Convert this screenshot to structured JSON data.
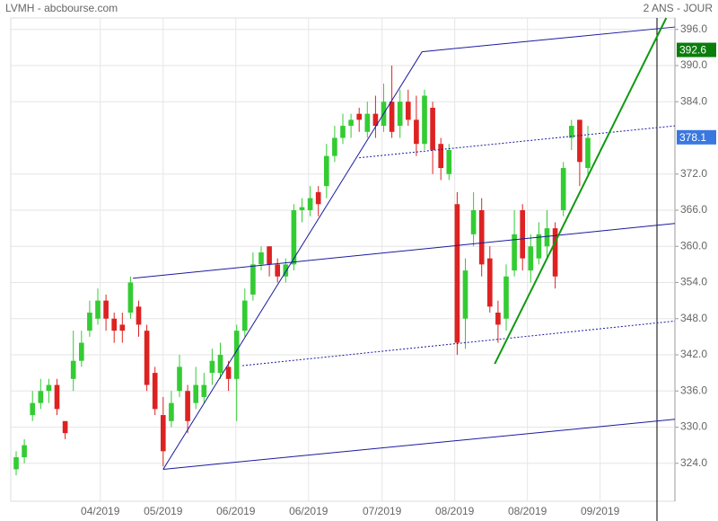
{
  "chart_data": {
    "type": "candlestick",
    "title": "LVMH - abcbourse.com",
    "subtitle": "2 ANS - JOUR",
    "x": [
      0,
      1,
      2,
      3,
      4,
      5,
      6,
      7,
      8,
      9,
      10,
      11,
      12,
      13,
      14,
      15,
      16,
      17,
      18,
      19,
      20,
      21,
      22,
      23,
      24,
      25,
      26,
      27,
      28,
      29,
      30,
      31,
      32,
      33,
      34,
      35,
      36,
      37,
      38,
      39,
      40,
      41,
      42,
      43,
      44,
      45,
      46,
      47,
      48,
      49,
      50,
      51,
      52,
      53,
      54,
      55,
      56,
      57,
      58,
      59,
      60,
      61,
      62,
      63,
      64,
      65,
      66,
      67,
      68,
      69,
      70
    ],
    "open": [
      323,
      325,
      332,
      334,
      336,
      337,
      331,
      338,
      341,
      346,
      348,
      351,
      348,
      347,
      349,
      350,
      346,
      339,
      332,
      331,
      336,
      336,
      334,
      335,
      339,
      339,
      340,
      338,
      346,
      352,
      357,
      360,
      357,
      355,
      357,
      366,
      366,
      369,
      370,
      375,
      378,
      380,
      382,
      379,
      382,
      380,
      384,
      380,
      384,
      381,
      377,
      383,
      377,
      372,
      367,
      348,
      362,
      366,
      358,
      349,
      348,
      356,
      366,
      356,
      358,
      360,
      363,
      366,
      378,
      381,
      373
    ],
    "high": [
      326,
      328,
      336,
      338,
      338,
      338,
      331,
      346,
      346,
      351,
      353,
      352,
      349,
      349,
      355,
      351,
      347,
      340,
      335,
      336,
      342,
      337,
      340,
      339,
      343,
      344,
      341,
      347,
      353,
      359,
      360,
      360,
      358,
      358,
      367,
      368,
      370,
      370,
      377,
      380,
      382,
      382,
      383,
      384,
      385,
      387,
      390,
      386,
      386,
      385,
      386,
      384,
      378,
      377,
      369,
      358,
      369,
      368,
      360,
      351,
      357,
      366,
      367,
      362,
      364,
      366,
      364,
      374,
      381,
      381,
      380
    ],
    "low": [
      322,
      324,
      331,
      333,
      334,
      332,
      328,
      336,
      340,
      345,
      347,
      346,
      344,
      344,
      348,
      345,
      336,
      332,
      323.5,
      330,
      335,
      329,
      333,
      334,
      337,
      338,
      336,
      331,
      345,
      351,
      356,
      355,
      354,
      354,
      356,
      364,
      365,
      365,
      368,
      374,
      377,
      378,
      379,
      378,
      378,
      379,
      378,
      378,
      380,
      375,
      376,
      372,
      371,
      371,
      342,
      343,
      360,
      355,
      349,
      344,
      346,
      355,
      356,
      354,
      357,
      358,
      353,
      365,
      376,
      370,
      372
    ],
    "close": [
      325,
      327,
      334,
      336,
      337,
      333,
      329,
      341,
      344,
      349,
      351,
      348,
      346,
      346,
      354,
      347,
      337,
      333,
      326,
      334,
      340,
      331,
      337,
      337,
      341,
      342,
      338,
      346,
      351,
      357,
      359,
      357,
      355,
      357,
      366,
      366.5,
      368,
      367,
      375,
      378,
      380,
      381,
      381,
      382,
      380,
      384,
      379,
      384,
      381,
      377,
      385,
      376,
      373,
      376,
      344,
      356,
      366,
      357,
      350,
      347,
      355,
      362,
      358,
      360,
      362,
      363,
      355,
      373,
      380,
      374,
      378
    ],
    "up_color": "#33cc33",
    "down_color": "#dd2222",
    "xlim": [
      -0.66,
      80.66
    ],
    "ylim": [
      317.7,
      397.9
    ],
    "xticks": [
      {
        "value": 10.3,
        "label": "04/2019"
      },
      {
        "value": 18.0,
        "label": "05/2019"
      },
      {
        "value": 26.9,
        "label": "06/2019"
      },
      {
        "value": 35.8,
        "label": "06/2019"
      },
      {
        "value": 44.8,
        "label": "07/2019"
      },
      {
        "value": 53.7,
        "label": "08/2019"
      },
      {
        "value": 62.6,
        "label": "08/2019"
      },
      {
        "value": 71.5,
        "label": "09/2019"
      }
    ],
    "yticks": [
      {
        "value": 324,
        "label": "324.0"
      },
      {
        "value": 330,
        "label": "330.0"
      },
      {
        "value": 336,
        "label": "336.0"
      },
      {
        "value": 342,
        "label": "342.0"
      },
      {
        "value": 348,
        "label": "348.0"
      },
      {
        "value": 354,
        "label": "354.0"
      },
      {
        "value": 360,
        "label": "360.0"
      },
      {
        "value": 366,
        "label": "366.0"
      },
      {
        "value": 372,
        "label": "372.0"
      },
      {
        "value": 384,
        "label": "384.0"
      },
      {
        "value": 390,
        "label": "390.0"
      },
      {
        "value": 396,
        "label": "396.0"
      }
    ],
    "grid": true,
    "trendlines": [
      {
        "color": "#1a1aa0",
        "dashed": false,
        "x": [
          14.3,
          80.66
        ],
        "y": [
          354.7,
          363.8
        ]
      },
      {
        "color": "#1a1aa0",
        "dashed": false,
        "x": [
          18.0,
          80.66
        ],
        "y": [
          323,
          331.3
        ]
      },
      {
        "color": "#1a1aa0",
        "dashed": true,
        "x": [
          27.7,
          80.66
        ],
        "y": [
          340.2,
          347.6
        ]
      },
      {
        "color": "#1a1aa0",
        "dashed": false,
        "x": [
          49.7,
          80.66
        ],
        "y": [
          392.3,
          396.4
        ]
      },
      {
        "color": "#1a1aa0",
        "dashed": true,
        "x": [
          42.0,
          80.66
        ],
        "y": [
          374.7,
          380.0
        ]
      },
      {
        "color": "#1a1aa0",
        "dashed": false,
        "x": [
          18.0,
          49.7
        ],
        "y": [
          323,
          392.3
        ]
      },
      {
        "color": "#119911",
        "dashed": false,
        "x": [
          58.6,
          79.6
        ],
        "y": [
          340.5,
          397.9
        ]
      }
    ],
    "badges": [
      {
        "value": 392.6,
        "color": "#0a7d0a"
      },
      {
        "value": 378.1,
        "color": "#3a78e0"
      }
    ]
  }
}
